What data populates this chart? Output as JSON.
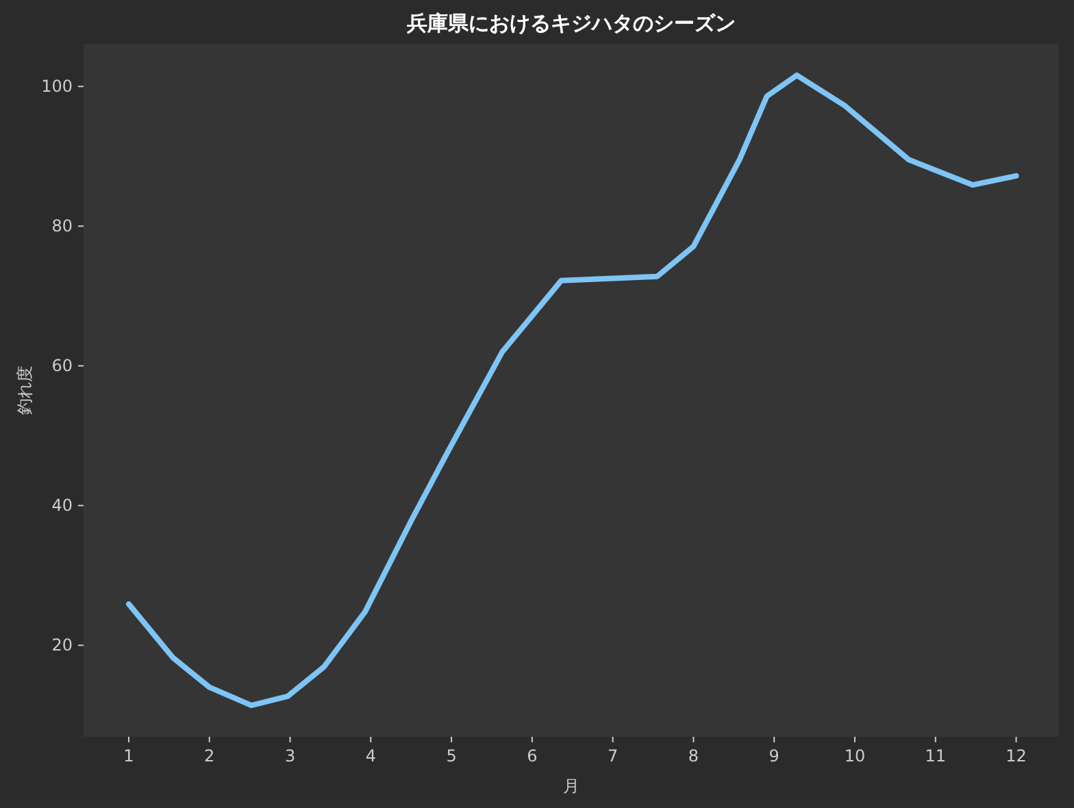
{
  "chart_data": {
    "type": "line",
    "title": "兵庫県におけるキジハタのシーズン",
    "xlabel": "月",
    "ylabel": "釣れ度",
    "xlim": [
      0.44,
      12.53
    ],
    "ylim": [
      6.9,
      106.1
    ],
    "xticks": [
      1,
      2,
      3,
      4,
      5,
      6,
      7,
      8,
      9,
      10,
      11,
      12
    ],
    "yticks": [
      20,
      40,
      60,
      80,
      100
    ],
    "grid": false,
    "marker": "none",
    "line_style": "solid",
    "series": [
      {
        "color": "#7ec4f5",
        "x": [
          1,
          1.55,
          2.0,
          2.52,
          2.97,
          3.42,
          3.93,
          4.5,
          4.95,
          5.63,
          6.36,
          7.55,
          8.0,
          8.57,
          8.91,
          9.28,
          9.87,
          10.67,
          11.46,
          12
        ],
        "values": [
          25.9,
          18.2,
          14.0,
          11.4,
          12.7,
          16.9,
          24.8,
          37.8,
          47.6,
          62.0,
          72.2,
          72.8,
          77.1,
          89.5,
          98.6,
          101.6,
          97.3,
          89.5,
          85.9,
          87.2
        ]
      }
    ]
  }
}
